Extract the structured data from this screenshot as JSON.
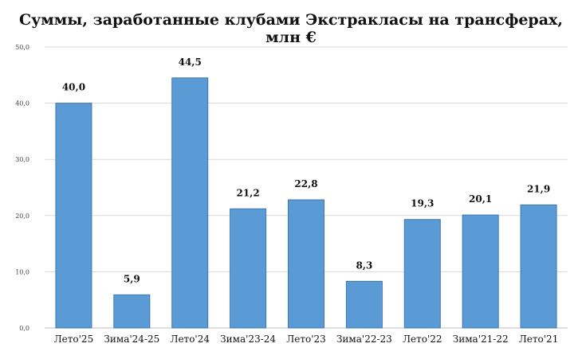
{
  "chart_data": {
    "type": "bar",
    "title": "Суммы, заработанные клубами Экстракласы на трансферах, млн €",
    "xlabel": "",
    "ylabel": "",
    "categories": [
      "Лето'25",
      "Зима'24-25",
      "Лето'24",
      "Зима'23-24",
      "Лето'23",
      "Зима'22-23",
      "Лето'22",
      "Зима'21-22",
      "Лето'21"
    ],
    "values": [
      40.0,
      5.9,
      44.5,
      21.2,
      22.8,
      8.3,
      19.3,
      20.1,
      21.9
    ],
    "data_labels": [
      "40,0",
      "5,9",
      "44,5",
      "21,2",
      "22,8",
      "8,3",
      "19,3",
      "20,1",
      "21,9"
    ],
    "ylim": [
      0,
      50
    ],
    "yticks": [
      0,
      10,
      20,
      30,
      40,
      50
    ],
    "ytick_labels": [
      "0,0",
      "10,0",
      "20,0",
      "30,0",
      "40,0",
      "50,0"
    ],
    "grid": true,
    "legend": "none",
    "colors": {
      "bar": "#5b9bd5",
      "bar_edge": "#3f78b0",
      "grid": "#d9d9d9",
      "axis": "#bfbfbf"
    }
  }
}
